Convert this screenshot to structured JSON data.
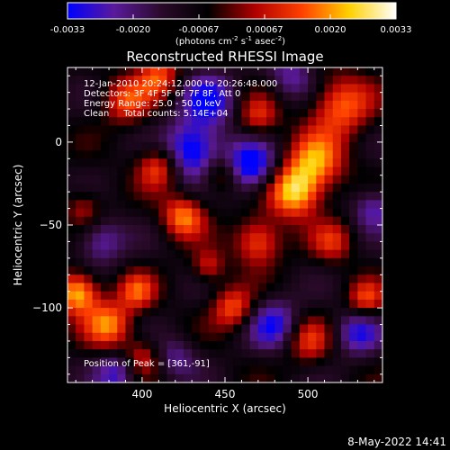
{
  "chart_data": {
    "type": "heatmap",
    "title": "Reconstructed RHESSI Image",
    "xlabel": "Heliocentric X (arcsec)",
    "ylabel": "Heliocentric Y (arcsec)",
    "x_ticks": [
      400,
      450,
      500
    ],
    "y_ticks": [
      0,
      -50,
      -100
    ],
    "xlim": [
      355,
      545
    ],
    "ylim": [
      -145,
      45
    ],
    "grid": false,
    "colorbar": {
      "position": "top",
      "ticks": [
        "-0.0033",
        "-0.0020",
        "-0.00067",
        "0.00067",
        "0.0020",
        "0.0033"
      ],
      "range": [
        -0.0033,
        0.0033
      ],
      "unit_prefix": "(photons cm",
      "unit_exp1": "-2",
      "unit_mid1": " s",
      "unit_exp2": "-1",
      "unit_mid2": " asec",
      "unit_exp3": "-2",
      "unit_suffix": ")",
      "colors": [
        "#0000ff",
        "#5a1a9a",
        "#2a0a2a",
        "#000000",
        "#b00000",
        "#ff4000",
        "#ffd000",
        "#ffffff"
      ]
    },
    "annotations": [
      "12-Jan-2010 20:24:12.000 to 20:26:48.000",
      "Detectors: 3F 4F 5F 6F 7F 8F, Att 0",
      "Energy Range: 25.0 - 50.0 keV",
      "Clean     Total counts: 5.14E+04"
    ],
    "peak_label": "Position of Peak = [361,-91]",
    "peak": [
      361,
      -91
    ],
    "hotspots": [
      {
        "x": 361,
        "y": -91,
        "v": 0.0033,
        "r": 9
      },
      {
        "x": 492,
        "y": -30,
        "v": 0.0033,
        "r": 11
      },
      {
        "x": 505,
        "y": -12,
        "v": 0.0026,
        "r": 12
      },
      {
        "x": 520,
        "y": 22,
        "v": 0.0024,
        "r": 13
      },
      {
        "x": 470,
        "y": -60,
        "v": 0.0024,
        "r": 10
      },
      {
        "x": 455,
        "y": -100,
        "v": 0.0022,
        "r": 9
      },
      {
        "x": 380,
        "y": -110,
        "v": 0.0026,
        "r": 10
      },
      {
        "x": 397,
        "y": -90,
        "v": 0.002,
        "r": 8
      },
      {
        "x": 425,
        "y": -45,
        "v": 0.0026,
        "r": 9
      },
      {
        "x": 410,
        "y": -15,
        "v": 0.0022,
        "r": 9
      },
      {
        "x": 448,
        "y": -20,
        "v": 0.0018,
        "r": 8
      },
      {
        "x": 390,
        "y": 25,
        "v": 0.002,
        "r": 10
      },
      {
        "x": 410,
        "y": 40,
        "v": 0.0022,
        "r": 9
      },
      {
        "x": 470,
        "y": 15,
        "v": 0.0018,
        "r": 9
      },
      {
        "x": 535,
        "y": -95,
        "v": 0.002,
        "r": 8
      },
      {
        "x": 500,
        "y": -120,
        "v": 0.0018,
        "r": 10
      },
      {
        "x": 400,
        "y": -130,
        "v": 0.0016,
        "r": 8
      },
      {
        "x": 440,
        "y": -75,
        "v": 0.0016,
        "r": 7
      },
      {
        "x": 365,
        "y": -40,
        "v": 0.0014,
        "r": 8
      },
      {
        "x": 515,
        "y": -60,
        "v": 0.0016,
        "r": 9
      },
      {
        "x": 430,
        "y": -5,
        "v": -0.003,
        "r": 12
      },
      {
        "x": 465,
        "y": -15,
        "v": -0.003,
        "r": 11
      },
      {
        "x": 440,
        "y": 25,
        "v": -0.0022,
        "r": 12
      },
      {
        "x": 480,
        "y": -110,
        "v": -0.0022,
        "r": 11
      },
      {
        "x": 530,
        "y": -115,
        "v": -0.002,
        "r": 10
      },
      {
        "x": 375,
        "y": -60,
        "v": -0.0018,
        "r": 10
      },
      {
        "x": 385,
        "y": -140,
        "v": -0.002,
        "r": 9
      },
      {
        "x": 540,
        "y": -40,
        "v": -0.0018,
        "r": 9
      },
      {
        "x": 490,
        "y": 40,
        "v": -0.0016,
        "r": 10
      },
      {
        "x": 420,
        "y": -130,
        "v": -0.0014,
        "r": 9
      }
    ]
  },
  "footer": {
    "date": "8-May-2022 14:41"
  }
}
